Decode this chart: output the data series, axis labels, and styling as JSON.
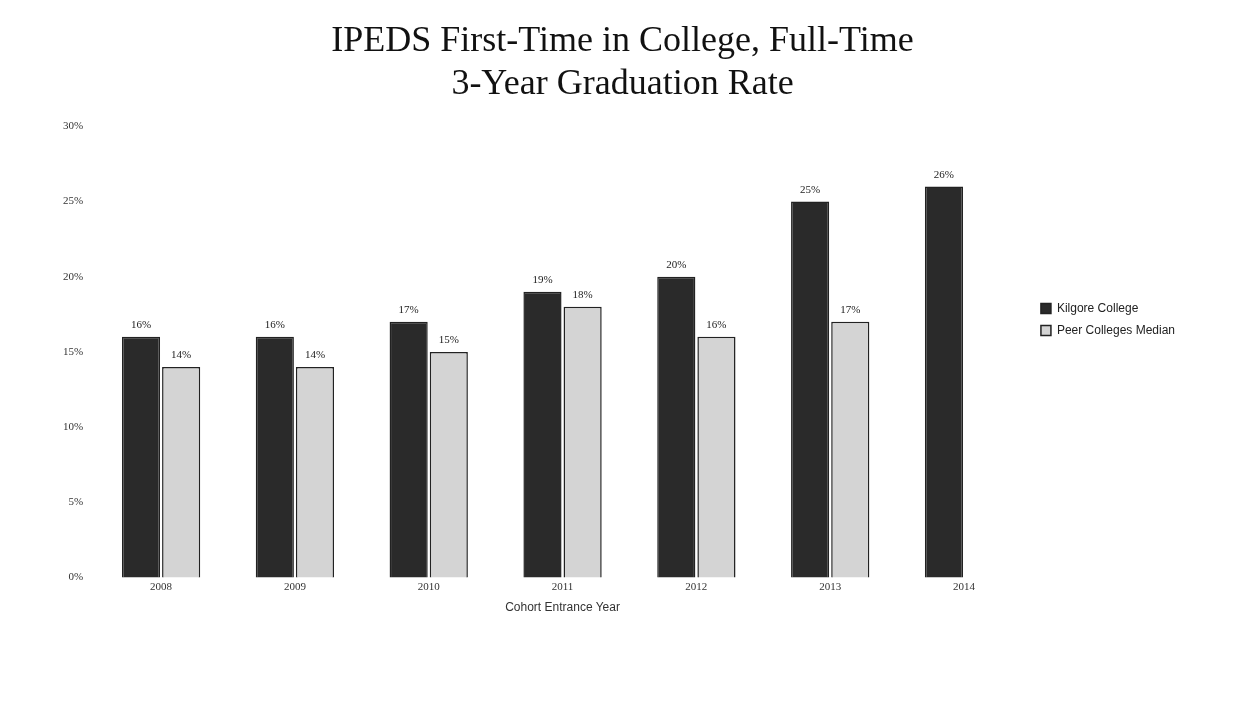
{
  "chart_data": {
    "type": "bar",
    "title": [
      "IPEDS First-Time in College, Full-Time",
      "3-Year Graduation Rate"
    ],
    "xlabel": "Cohort Entrance Year",
    "categories": [
      "2008",
      "2009",
      "2010",
      "2011",
      "2012",
      "2013",
      "2014"
    ],
    "series": [
      {
        "name": "Kilgore College",
        "color": "#2a2a2a",
        "values": [
          16,
          16,
          17,
          19,
          20,
          25,
          26
        ],
        "value_labels": [
          "16%",
          "16%",
          "17%",
          "19%",
          "20%",
          "25%",
          "26%"
        ]
      },
      {
        "name": "Peer Colleges Median",
        "color": "#d4d4d4",
        "values": [
          14,
          14,
          15,
          18,
          16,
          17,
          null
        ],
        "value_labels": [
          "14%",
          "14%",
          "15%",
          "18%",
          "16%",
          "17%",
          null
        ]
      }
    ],
    "ylim": [
      0,
      30
    ],
    "yticks": [
      {
        "value": 0,
        "label": "0%"
      },
      {
        "value": 5,
        "label": "5%"
      },
      {
        "value": 10,
        "label": "10%"
      },
      {
        "value": 15,
        "label": "15%"
      },
      {
        "value": 20,
        "label": "20%"
      },
      {
        "value": 25,
        "label": "25%"
      },
      {
        "value": 30,
        "label": "30%"
      }
    ],
    "grid": false,
    "legend": "right"
  }
}
